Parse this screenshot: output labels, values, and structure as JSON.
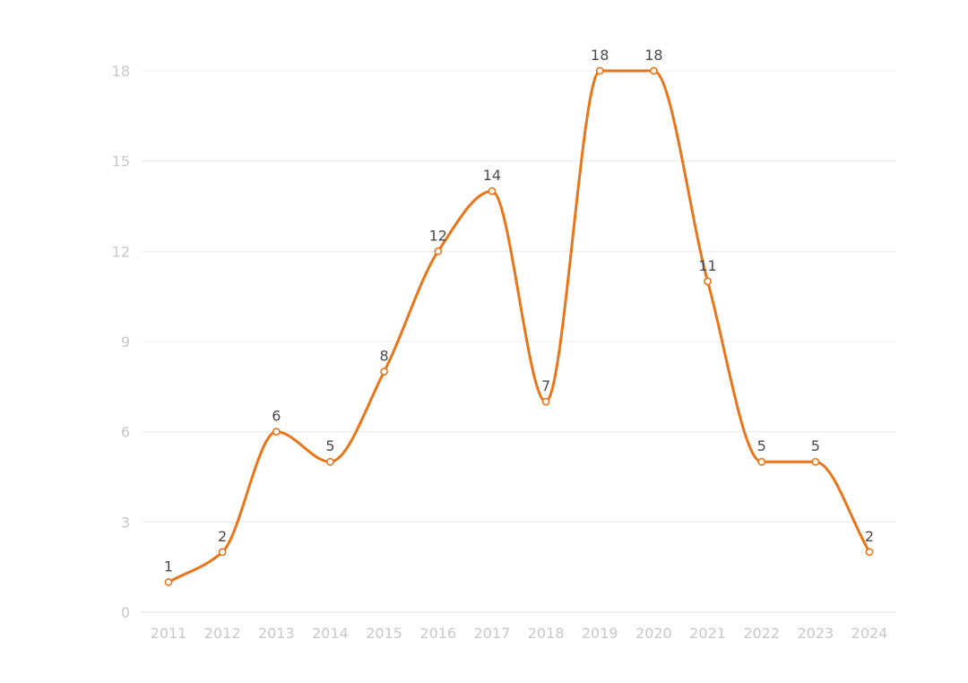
{
  "chart_data": {
    "type": "line",
    "smooth": true,
    "x": [
      "2011",
      "2012",
      "2013",
      "2014",
      "2015",
      "2016",
      "2017",
      "2018",
      "2019",
      "2020",
      "2021",
      "2022",
      "2023",
      "2024"
    ],
    "series": [
      {
        "values": [
          1,
          2,
          6,
          5,
          8,
          12,
          14,
          7,
          18,
          18,
          11,
          5,
          5,
          2
        ],
        "color": "#e8751a"
      }
    ],
    "ylim": [
      0,
      18
    ],
    "yticks": [
      0,
      3,
      6,
      9,
      12,
      15,
      18
    ],
    "grid": true,
    "data_labels": true,
    "legend": "none"
  }
}
